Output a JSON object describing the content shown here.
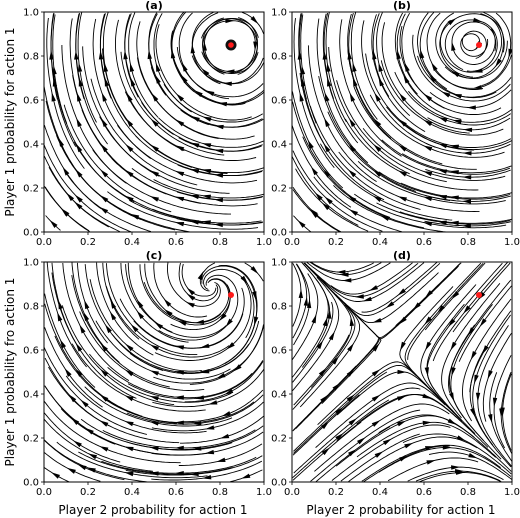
{
  "figure": {
    "xlabel": "Player 2 probability for action 1",
    "ylabel_top": "Player 1 probability for action 1",
    "ylabel_bottom": "Player 1 probability fro action 1"
  },
  "colors": {
    "stream": "#000000",
    "equilibrium": "#ff1a1a",
    "background": "#ffffff"
  },
  "chart_data": [
    {
      "type": "streamplot",
      "title": "(a)",
      "xlim": [
        0,
        1
      ],
      "ylim": [
        0,
        1
      ],
      "xticks": [
        "0.0",
        "0.2",
        "0.4",
        "0.6",
        "0.8",
        "1.0"
      ],
      "yticks": [
        "0.0",
        "0.2",
        "0.4",
        "0.6",
        "0.8",
        "1.0"
      ],
      "flow": "clockwise",
      "center": [
        0.85,
        0.85
      ],
      "equilibrium_point": {
        "x": 0.85,
        "y": 0.85,
        "marker": "black dot with red"
      }
    },
    {
      "type": "streamplot",
      "title": "(b)",
      "xlim": [
        0,
        1
      ],
      "ylim": [
        0,
        1
      ],
      "xticks": [
        "0.0",
        "0.2",
        "0.4",
        "0.6",
        "0.8",
        "1.0"
      ],
      "yticks": [
        "0.0",
        "0.2",
        "0.4",
        "0.6",
        "0.8",
        "1.0"
      ],
      "flow": "clockwise",
      "center": [
        0.82,
        0.86
      ],
      "equilibrium_point": {
        "x": 0.85,
        "y": 0.85,
        "marker": "red dot"
      }
    },
    {
      "type": "streamplot",
      "title": "(c)",
      "xlim": [
        0,
        1
      ],
      "ylim": [
        0,
        1
      ],
      "xticks": [
        "0.0",
        "0.2",
        "0.4",
        "0.6",
        "0.8",
        "1.0"
      ],
      "yticks": [
        "0.0",
        "0.2",
        "0.4",
        "0.6",
        "0.8",
        "1.0"
      ],
      "flow": "clockwise spiral",
      "center": [
        0.76,
        0.89
      ],
      "equilibrium_point": {
        "x": 0.85,
        "y": 0.85,
        "marker": "red dot"
      }
    },
    {
      "type": "streamplot",
      "title": "(d)",
      "xlim": [
        0,
        1
      ],
      "ylim": [
        0,
        1
      ],
      "xticks": [
        "0.0",
        "0.2",
        "0.4",
        "0.6",
        "0.8",
        "1.0"
      ],
      "yticks": [
        "0.0",
        "0.2",
        "0.4",
        "0.6",
        "0.8",
        "1.0"
      ],
      "flow": "saddle",
      "center": [
        0.42,
        0.63
      ],
      "equilibrium_point": {
        "x": 0.85,
        "y": 0.85,
        "marker": "red dot"
      }
    }
  ]
}
